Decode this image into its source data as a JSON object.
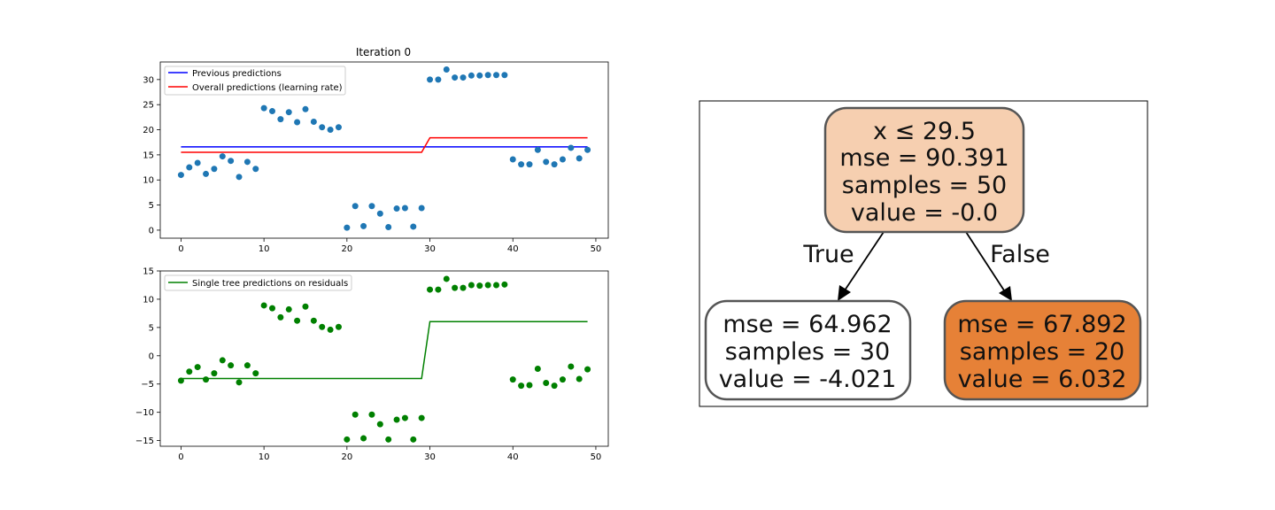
{
  "chart_data": [
    {
      "type": "scatter+line",
      "title": "Iteration 0",
      "xlabel": "",
      "ylabel": "",
      "xlim": [
        -2.5,
        51.5
      ],
      "ylim": [
        -1.6,
        33.5
      ],
      "xticks": [
        0,
        10,
        20,
        30,
        40,
        50
      ],
      "yticks": [
        0,
        5,
        10,
        15,
        20,
        25,
        30
      ],
      "grid": false,
      "legend_position": "upper-left",
      "points": {
        "color": "#1f77b4",
        "x": [
          0,
          1,
          2,
          3,
          4,
          5,
          6,
          7,
          8,
          9,
          10,
          11,
          12,
          13,
          14,
          15,
          16,
          17,
          18,
          19,
          20,
          21,
          22,
          23,
          24,
          25,
          26,
          27,
          28,
          29,
          30,
          31,
          32,
          33,
          34,
          35,
          36,
          37,
          38,
          39,
          40,
          41,
          42,
          43,
          44,
          45,
          46,
          47,
          48,
          49
        ],
        "y": [
          11,
          12.5,
          13.4,
          11.2,
          12.2,
          14.7,
          13.8,
          10.6,
          13.6,
          12.2,
          24.3,
          23.7,
          22.1,
          23.5,
          21.5,
          24.1,
          21.6,
          20.5,
          20,
          20.5,
          0.5,
          4.8,
          0.8,
          4.8,
          3.3,
          0.6,
          4.3,
          4.4,
          0.7,
          4.4,
          30,
          30,
          32,
          30.4,
          30.4,
          30.8,
          30.8,
          30.9,
          30.9,
          30.9,
          14.1,
          13.1,
          13.1,
          16,
          13.6,
          13.1,
          14.1,
          16.4,
          14.3,
          16
        ]
      },
      "series": [
        {
          "name": "Previous predictions",
          "color": "#0000ff",
          "x": [
            0,
            49
          ],
          "y": [
            16.6,
            16.6
          ]
        },
        {
          "name": "Overall predictions (learning rate)",
          "color": "#ff0000",
          "x": [
            0,
            29,
            30,
            49
          ],
          "y": [
            15.5,
            15.5,
            18.4,
            18.4
          ]
        }
      ]
    },
    {
      "type": "scatter+line",
      "title": "",
      "xlabel": "",
      "ylabel": "",
      "xlim": [
        -2.5,
        51.5
      ],
      "ylim": [
        -16,
        15
      ],
      "xticks": [
        0,
        10,
        20,
        30,
        40,
        50
      ],
      "yticks": [
        -15,
        -10,
        -5,
        0,
        5,
        10,
        15
      ],
      "grid": false,
      "legend_position": "upper-left",
      "points": {
        "color": "#008000",
        "x": [
          0,
          1,
          2,
          3,
          4,
          5,
          6,
          7,
          8,
          9,
          10,
          11,
          12,
          13,
          14,
          15,
          16,
          17,
          18,
          19,
          20,
          21,
          22,
          23,
          24,
          25,
          26,
          27,
          28,
          29,
          30,
          31,
          32,
          33,
          34,
          35,
          36,
          37,
          38,
          39,
          40,
          41,
          42,
          43,
          44,
          45,
          46,
          47,
          48,
          49
        ],
        "y": [
          -4.4,
          -2.8,
          -2,
          -4.2,
          -3.1,
          -0.8,
          -1.7,
          -4.7,
          -1.7,
          -3.1,
          8.9,
          8.4,
          6.8,
          8.2,
          6.2,
          8.7,
          6.2,
          5.1,
          4.6,
          5.1,
          -14.8,
          -10.4,
          -14.6,
          -10.4,
          -12.1,
          -14.8,
          -11.3,
          -11,
          -14.8,
          -11,
          11.7,
          11.7,
          13.6,
          12,
          12,
          12.5,
          12.4,
          12.5,
          12.5,
          12.6,
          -4.2,
          -5.3,
          -5.2,
          -2.3,
          -4.8,
          -5.3,
          -4.2,
          -1.9,
          -4.1,
          -2.4
        ]
      },
      "series": [
        {
          "name": "Single tree predictions on residuals",
          "color": "#008000",
          "x": [
            0,
            29,
            30,
            49
          ],
          "y": [
            -4.02,
            -4.02,
            6.03,
            6.03
          ]
        }
      ]
    }
  ],
  "tree": {
    "root": {
      "lines": [
        "x ≤ 29.5",
        "mse = 90.391",
        "samples = 50",
        "value = -0.0"
      ],
      "fill": "#f6cfb0"
    },
    "left": {
      "lines": [
        "mse = 64.962",
        "samples = 30",
        "value = -4.021"
      ],
      "fill": "#ffffff"
    },
    "right": {
      "lines": [
        "mse = 67.892",
        "samples = 20",
        "value = 6.032"
      ],
      "fill": "#e68137"
    },
    "edge_true": "True",
    "edge_false": "False"
  }
}
